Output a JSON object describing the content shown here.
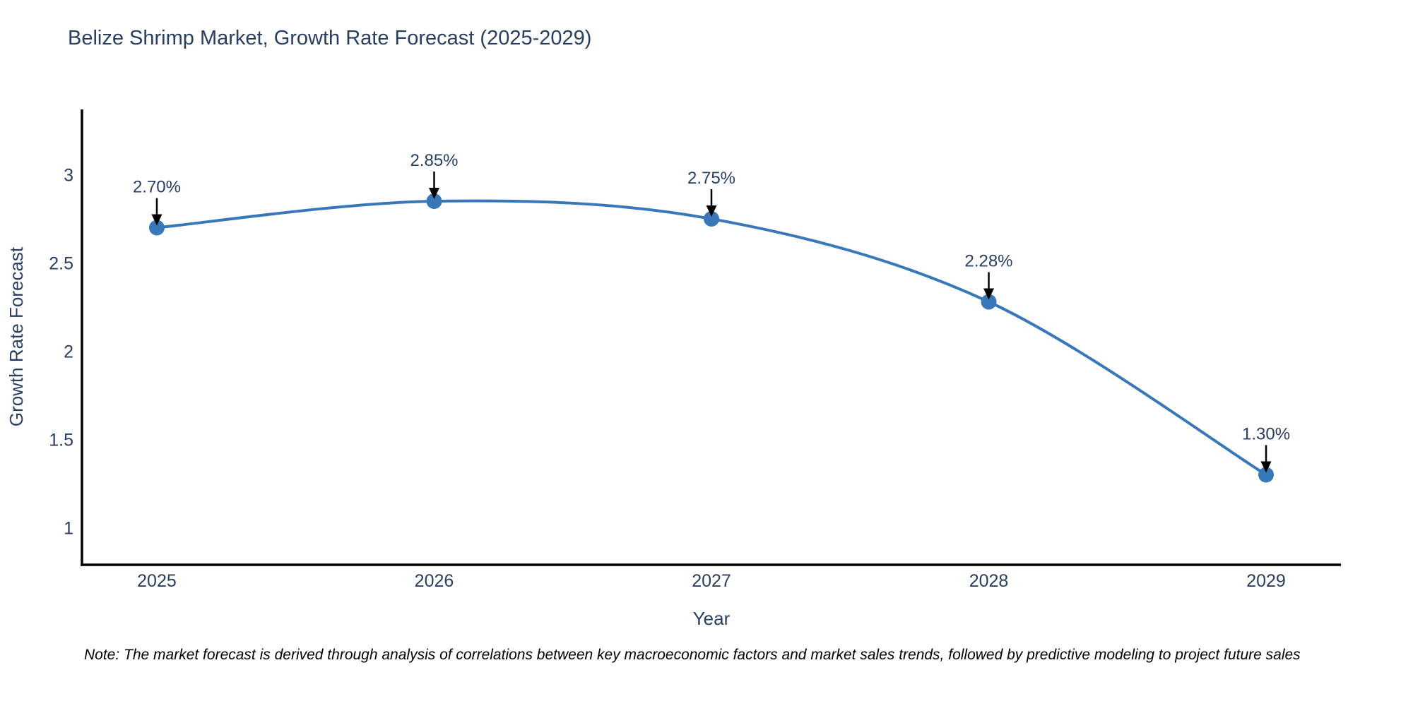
{
  "chart_data": {
    "type": "line",
    "title": "Belize Shrimp Market, Growth Rate Forecast (2025-2029)",
    "xlabel": "Year",
    "ylabel": "Growth Rate Forecast",
    "x": [
      2025,
      2026,
      2027,
      2028,
      2029
    ],
    "values": [
      2.7,
      2.85,
      2.75,
      2.28,
      1.3
    ],
    "point_labels": [
      "2.70%",
      "2.85%",
      "2.75%",
      "2.28%",
      "1.30%"
    ],
    "xticks": [
      2025,
      2026,
      2027,
      2028,
      2029
    ],
    "xtick_labels": [
      "2025",
      "2026",
      "2027",
      "2028",
      "2029"
    ],
    "yticks": [
      1,
      1.5,
      2,
      2.5,
      3
    ],
    "ytick_labels": [
      "1",
      "1.5",
      "2",
      "2.5",
      "3"
    ],
    "xlim": [
      2024.73,
      2029.27
    ],
    "ylim": [
      0.79,
      3.37
    ],
    "line_shape": "spline",
    "grid": false,
    "legend": "none",
    "colors": {
      "line": "#3878b8",
      "marker": "#3878b8",
      "axis": "#000000",
      "text": "#2a3f5f",
      "annotation_arrow": "#000000",
      "note_text": "#000000"
    }
  },
  "note": {
    "text": "Note: The market forecast is derived through analysis of correlations between key macroeconomic factors and market sales trends, followed by predictive modeling to project future sales"
  }
}
